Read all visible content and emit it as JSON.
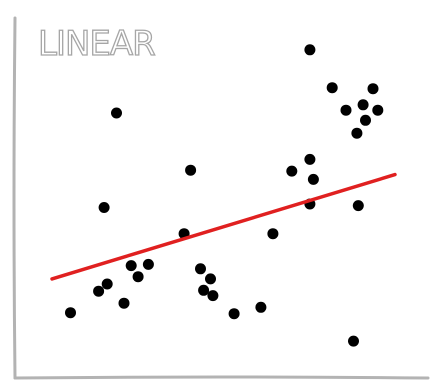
{
  "chart_data": {
    "type": "scatter",
    "title": "LINEAR",
    "xlabel": "",
    "ylabel": "",
    "xlim": [
      0,
      100
    ],
    "ylim": [
      0,
      100
    ],
    "grid": false,
    "series": [
      {
        "points": [
          {
            "x": 5.4,
            "y": 13.7
          },
          {
            "x": 13.6,
            "y": 20.5
          },
          {
            "x": 15.2,
            "y": 47.0
          },
          {
            "x": 16.1,
            "y": 22.8
          },
          {
            "x": 18.8,
            "y": 76.9
          },
          {
            "x": 21.0,
            "y": 16.7
          },
          {
            "x": 23.1,
            "y": 28.6
          },
          {
            "x": 25.1,
            "y": 25.1
          },
          {
            "x": 28.1,
            "y": 29.0
          },
          {
            "x": 38.5,
            "y": 38.7
          },
          {
            "x": 40.4,
            "y": 58.8
          },
          {
            "x": 43.3,
            "y": 27.6
          },
          {
            "x": 44.2,
            "y": 20.8
          },
          {
            "x": 46.2,
            "y": 24.4
          },
          {
            "x": 46.9,
            "y": 19.1
          },
          {
            "x": 53.1,
            "y": 13.4
          },
          {
            "x": 60.9,
            "y": 15.4
          },
          {
            "x": 64.4,
            "y": 38.7
          },
          {
            "x": 69.9,
            "y": 58.5
          },
          {
            "x": 75.2,
            "y": 62.2
          },
          {
            "x": 75.2,
            "y": 48.1
          },
          {
            "x": 76.2,
            "y": 55.9
          },
          {
            "x": 75.2,
            "y": 96.9
          },
          {
            "x": 81.7,
            "y": 84.9
          },
          {
            "x": 85.7,
            "y": 77.8
          },
          {
            "x": 87.9,
            "y": 4.7
          },
          {
            "x": 88.9,
            "y": 70.5
          },
          {
            "x": 89.3,
            "y": 47.6
          },
          {
            "x": 90.7,
            "y": 79.5
          },
          {
            "x": 91.4,
            "y": 74.6
          },
          {
            "x": 93.6,
            "y": 84.6
          },
          {
            "x": 95.0,
            "y": 77.8
          }
        ]
      }
    ],
    "trendline": {
      "x": [
        0,
        100
      ],
      "y": [
        24.4,
        57.4
      ],
      "color": "#e02020"
    },
    "colors": {
      "points": "#000000",
      "axis": "#b3b3b3",
      "title": "#a6a6a6"
    }
  }
}
